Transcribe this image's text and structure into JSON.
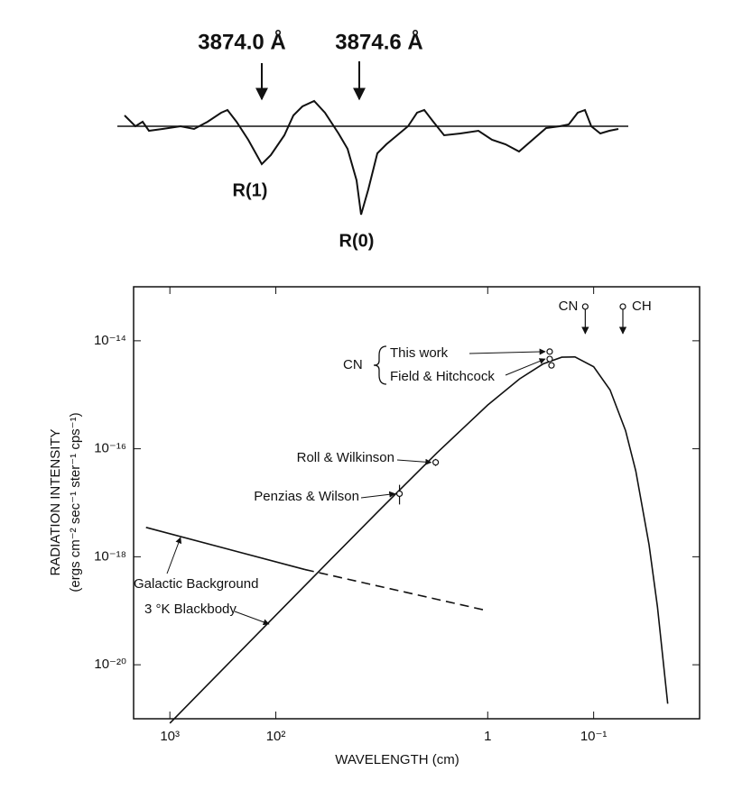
{
  "spectrum": {
    "lines": [
      "3874.0 Å",
      "3874.6 Å"
    ],
    "labels": [
      "R(1)",
      "R(0)"
    ]
  },
  "chart_data": {
    "type": "line",
    "log_x": true,
    "log_y": true,
    "color": "#111",
    "xlabel": "WAVELENGTH (cm)",
    "ylabel": "RADIATION INTENSITY",
    "ylabel2": "(ergs cm⁻² sec⁻¹ ster⁻¹ cps⁻¹)",
    "xlim": [
      2200,
      0.01
    ],
    "xticks": [
      {
        "value": 1000,
        "label": "10³"
      },
      {
        "value": 100,
        "label": "10²"
      },
      1,
      {
        "value": 0.1,
        "label": "10⁻¹"
      }
    ],
    "ylim": [
      1e-21,
      1e-13
    ],
    "yticks": [
      {
        "value": 1e-14,
        "label": "10⁻¹⁴"
      },
      {
        "value": 1e-16,
        "label": "10⁻¹⁶"
      },
      {
        "value": 1e-18,
        "label": "10⁻¹⁸"
      },
      {
        "value": 1e-20,
        "label": "10⁻²⁰"
      }
    ],
    "series": [
      {
        "name": "3 °K Blackbody",
        "x": [
          1000,
          300,
          100,
          30,
          10,
          3,
          1,
          0.5,
          0.3,
          0.2,
          0.15,
          0.1,
          0.07,
          0.05,
          0.04,
          0.03,
          0.025,
          0.02
        ],
        "values": [
          8.28e-22,
          9.2e-21,
          8.28e-20,
          9.13e-19,
          8.08e-18,
          8.48e-17,
          6.45e-16,
          1.97e-15,
          3.73e-15,
          4.96e-15,
          5.02e-15,
          3.31e-15,
          1.23e-15,
          2.17e-16,
          3.86e-17,
          1.67e-18,
          1.19e-19,
          1.9e-21
        ]
      },
      {
        "name": "Galactic Background",
        "x": [
          1680,
          53,
          1
        ],
        "values": [
          3.5e-18,
          5.8e-19,
          1e-19
        ],
        "dashed": [
          false,
          true
        ]
      }
    ],
    "group_label": "CN",
    "measurements": [
      {
        "name": "This work",
        "x": [
          0.26
        ],
        "values": [
          6.3e-15
        ],
        "lower": [
          5.7e-15
        ],
        "upper": [
          7e-15
        ]
      },
      {
        "name": "Field & Hitchcock",
        "x": [
          0.26,
          0.25
        ],
        "values": [
          4.6e-15,
          3.5e-15
        ],
        "lower": [
          4.3e-15,
          3.3e-15
        ],
        "upper": [
          4.9e-15,
          3.7e-15
        ]
      },
      {
        "name": "Roll & Wilkinson",
        "x": [
          3.1
        ],
        "values": [
          5.6e-17
        ],
        "lower": [
          4.8e-17
        ],
        "upper": [
          6.5e-17
        ]
      },
      {
        "name": "Penzias & Wilson",
        "x": [
          6.8
        ],
        "values": [
          1.47e-17
        ],
        "lower": [
          9.3e-18
        ],
        "upper": [
          2.15e-17
        ]
      }
    ],
    "upper_limits": [
      {
        "name": "CN",
        "x": 0.12,
        "value": 4.3e-14
      },
      {
        "name": "CH",
        "x": 0.053,
        "value": 4.3e-14
      }
    ]
  }
}
